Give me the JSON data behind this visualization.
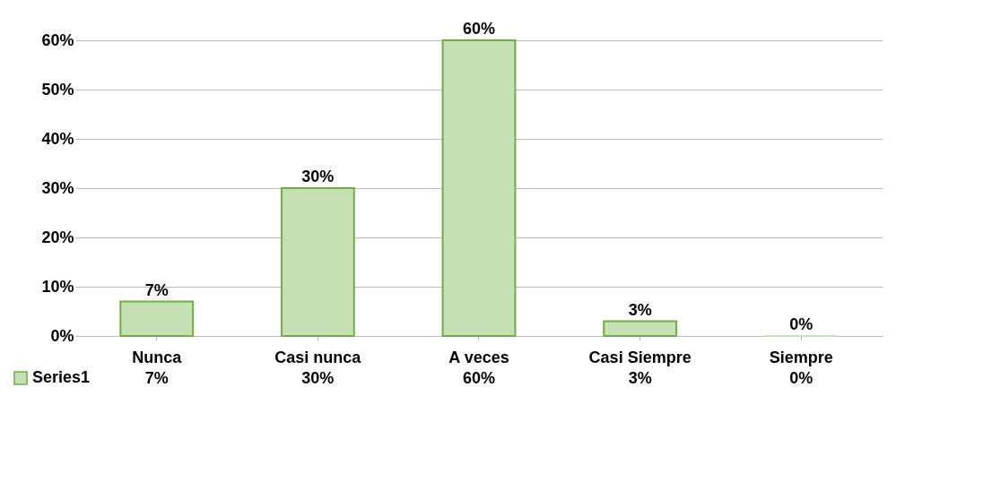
{
  "chart_data": {
    "type": "bar",
    "categories": [
      "Nunca",
      "Casi nunca",
      "A veces",
      "Casi Siempre",
      "Siempre"
    ],
    "series": [
      {
        "name": "Series1",
        "color": "#c5e0b3",
        "values": [
          7,
          30,
          60,
          3,
          0
        ],
        "value_labels": [
          "7%",
          "30%",
          "60%",
          "3%",
          "0%"
        ]
      }
    ],
    "ylim": [
      0,
      60
    ],
    "yticks": [
      {
        "value": 0,
        "label": "0%"
      },
      {
        "value": 10,
        "label": "10%"
      },
      {
        "value": 20,
        "label": "20%"
      },
      {
        "value": 30,
        "label": "30%"
      },
      {
        "value": 40,
        "label": "40%"
      },
      {
        "value": 50,
        "label": "50%"
      },
      {
        "value": 60,
        "label": "60%"
      }
    ],
    "grid": "y",
    "legend": "bottom left"
  }
}
